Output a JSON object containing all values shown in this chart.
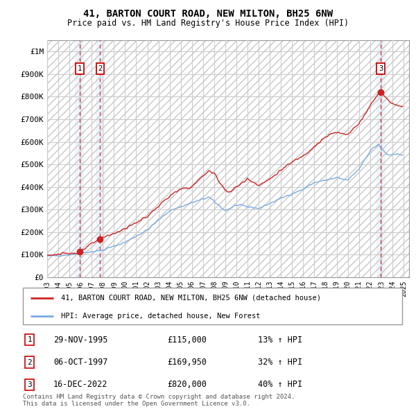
{
  "title": "41, BARTON COURT ROAD, NEW MILTON, BH25 6NW",
  "subtitle": "Price paid vs. HM Land Registry's House Price Index (HPI)",
  "xlim_start": 1993.0,
  "xlim_end": 2025.5,
  "ylim": [
    0,
    1050000
  ],
  "yticks": [
    0,
    100000,
    200000,
    300000,
    400000,
    500000,
    600000,
    700000,
    800000,
    900000,
    1000000
  ],
  "ytick_labels": [
    "£0",
    "£100K",
    "£200K",
    "£300K",
    "£400K",
    "£500K",
    "£600K",
    "£700K",
    "£800K",
    "£900K",
    "£1M"
  ],
  "xticks": [
    1993,
    1994,
    1995,
    1996,
    1997,
    1998,
    1999,
    2000,
    2001,
    2002,
    2003,
    2004,
    2005,
    2006,
    2007,
    2008,
    2009,
    2010,
    2011,
    2012,
    2013,
    2014,
    2015,
    2016,
    2017,
    2018,
    2019,
    2020,
    2021,
    2022,
    2023,
    2024,
    2025
  ],
  "hpi_line_color": "#7aabe0",
  "price_line_color": "#cc2222",
  "grid_color": "#cccccc",
  "transactions": [
    {
      "id": 1,
      "year": 1995.917,
      "price": 115000,
      "date": "29-NOV-1995",
      "price_str": "£115,000",
      "pct": "13%",
      "dir": "↑"
    },
    {
      "id": 2,
      "year": 1997.75,
      "price": 169950,
      "date": "06-OCT-1997",
      "price_str": "£169,950",
      "pct": "32%",
      "dir": "↑"
    },
    {
      "id": 3,
      "year": 2022.958,
      "price": 820000,
      "date": "16-DEC-2022",
      "price_str": "£820,000",
      "pct": "40%",
      "dir": "↑"
    }
  ],
  "legend_label_price": "41, BARTON COURT ROAD, NEW MILTON, BH25 6NW (detached house)",
  "legend_label_hpi": "HPI: Average price, detached house, New Forest",
  "footer": "Contains HM Land Registry data © Crown copyright and database right 2024.\nThis data is licensed under the Open Government Licence v3.0."
}
